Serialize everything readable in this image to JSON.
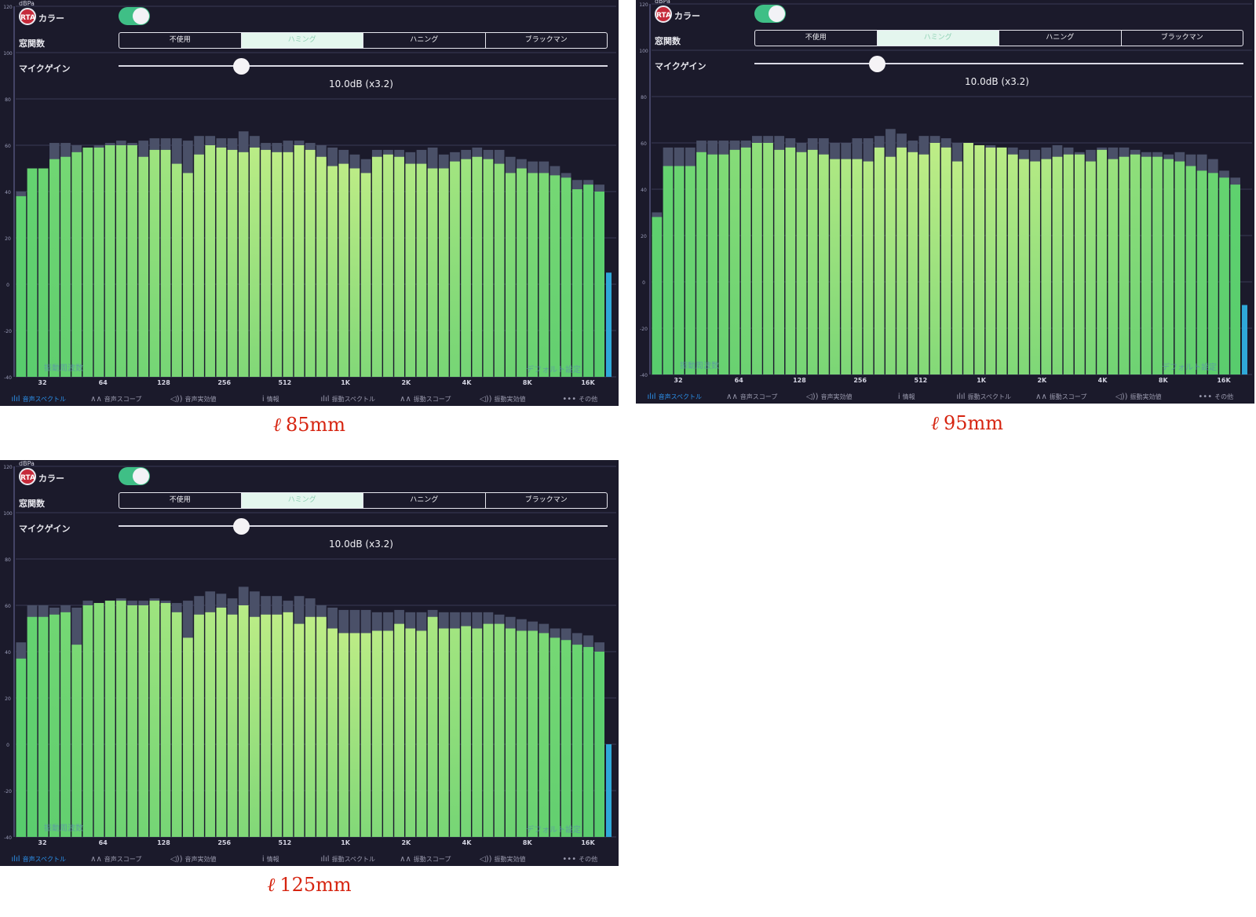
{
  "common": {
    "unit_label": "dBPa",
    "rta_badge": "RTA",
    "rta_color_label": "カラー",
    "window_label": "窓関数",
    "window_options": [
      "不使用",
      "ハミング",
      "ハニング",
      "ブラックマン"
    ],
    "window_selected_index": 1,
    "mic_gain_label": "マイクゲイン",
    "mic_gain_value": "10.0dB (x3.2)",
    "mic_gain_level": 0.25,
    "rta_color_on": true,
    "overlay_left": "振動周波数",
    "overlay_right": "デフォルト設定",
    "tabs": [
      {
        "icon": "spectrum-icon",
        "glyph": "ılıl",
        "label": "音声スペクトル",
        "active": true
      },
      {
        "icon": "wave-icon",
        "glyph": "∧∧",
        "label": "音声スコープ",
        "active": false
      },
      {
        "icon": "speaker-icon",
        "glyph": "◁))",
        "label": "音声実効値",
        "active": false
      },
      {
        "icon": "info-icon",
        "glyph": "i",
        "label": "情報",
        "active": false
      },
      {
        "icon": "vibration-spectrum-icon",
        "glyph": "ılıl",
        "label": "振動スペクトル",
        "active": false
      },
      {
        "icon": "vibration-wave-icon",
        "glyph": "∧∧",
        "label": "振動スコープ",
        "active": false
      },
      {
        "icon": "vibration-speaker-icon",
        "glyph": "◁))",
        "label": "振動実効値",
        "active": false
      },
      {
        "icon": "more-icon",
        "glyph": "•••",
        "label": "その他",
        "active": false
      }
    ],
    "colors": {
      "bar_top": "#8ae68a",
      "bar_low": "#52c86c",
      "panel_bg": "#1b1a2b",
      "peak": "#4a5068",
      "accent": "#2b8fe8"
    }
  },
  "chart_data": [
    {
      "type": "bar",
      "caption": "ℓ 85mm",
      "caption_prefix": "ℓ",
      "caption_value": "85mm",
      "ylabel": "dBPa",
      "ylim": [
        -40,
        120
      ],
      "y_ticks": [
        120,
        100,
        80,
        60,
        40,
        20,
        0,
        -20,
        -40
      ],
      "x_tick_labels": [
        "32",
        "64",
        "128",
        "256",
        "512",
        "1K",
        "2K",
        "4K",
        "8K",
        "16K"
      ],
      "values": [
        38,
        50,
        50,
        54,
        55,
        57,
        59,
        59,
        60,
        60,
        60,
        55,
        58,
        58,
        52,
        48,
        56,
        60,
        59,
        58,
        57,
        59,
        58,
        57,
        57,
        60,
        58,
        55,
        51,
        52,
        50,
        48,
        55,
        56,
        55,
        52,
        52,
        50,
        50,
        53,
        54,
        55,
        54,
        52,
        48,
        50,
        48,
        48,
        47,
        46,
        41,
        43,
        40
      ],
      "peaks": [
        40,
        50,
        50,
        61,
        61,
        60,
        59,
        60,
        61,
        62,
        61,
        62,
        63,
        63,
        63,
        62,
        64,
        64,
        63,
        63,
        66,
        64,
        61,
        61,
        62,
        62,
        61,
        60,
        59,
        58,
        56,
        54,
        58,
        58,
        58,
        57,
        58,
        59,
        56,
        57,
        58,
        59,
        58,
        58,
        55,
        54,
        53,
        53,
        51,
        48,
        45,
        45,
        43
      ],
      "last_value": 5
    },
    {
      "type": "bar",
      "caption": "ℓ 95mm",
      "caption_prefix": "ℓ",
      "caption_value": "95mm",
      "ylabel": "dBPa",
      "ylim": [
        -40,
        120
      ],
      "y_ticks": [
        120,
        100,
        80,
        60,
        40,
        20,
        0,
        -20,
        -40
      ],
      "x_tick_labels": [
        "32",
        "64",
        "128",
        "256",
        "512",
        "1K",
        "2K",
        "4K",
        "8K",
        "16K"
      ],
      "values": [
        28,
        50,
        50,
        50,
        56,
        55,
        55,
        57,
        58,
        60,
        60,
        57,
        58,
        56,
        57,
        55,
        53,
        53,
        53,
        52,
        58,
        54,
        58,
        56,
        55,
        60,
        58,
        52,
        60,
        59,
        58,
        58,
        55,
        53,
        52,
        53,
        54,
        55,
        55,
        52,
        57,
        53,
        54,
        55,
        54,
        54,
        53,
        52,
        50,
        48,
        47,
        45,
        42
      ],
      "peaks": [
        30,
        58,
        58,
        58,
        61,
        61,
        61,
        61,
        61,
        63,
        63,
        63,
        62,
        60,
        62,
        62,
        60,
        60,
        62,
        62,
        63,
        66,
        64,
        61,
        63,
        63,
        62,
        60,
        60,
        58,
        59,
        58,
        58,
        57,
        57,
        58,
        59,
        58,
        56,
        57,
        58,
        58,
        58,
        57,
        56,
        56,
        55,
        56,
        55,
        55,
        53,
        48,
        45
      ],
      "last_value": -10
    },
    {
      "type": "bar",
      "caption": "ℓ 125mm",
      "caption_prefix": "ℓ",
      "caption_value": "125mm",
      "ylabel": "dBPa",
      "ylim": [
        -40,
        120
      ],
      "y_ticks": [
        120,
        100,
        80,
        60,
        40,
        20,
        0,
        -20,
        -40
      ],
      "x_tick_labels": [
        "32",
        "64",
        "128",
        "256",
        "512",
        "1K",
        "2K",
        "4K",
        "8K",
        "16K"
      ],
      "values": [
        37,
        55,
        55,
        56,
        57,
        43,
        60,
        61,
        62,
        62,
        60,
        60,
        62,
        61,
        57,
        46,
        56,
        57,
        59,
        56,
        60,
        55,
        56,
        56,
        57,
        52,
        55,
        55,
        50,
        48,
        48,
        48,
        49,
        49,
        52,
        50,
        49,
        55,
        50,
        50,
        51,
        50,
        52,
        52,
        50,
        49,
        49,
        48,
        46,
        45,
        43,
        42,
        40
      ],
      "peaks": [
        44,
        60,
        60,
        59,
        60,
        59,
        62,
        61,
        62,
        63,
        62,
        62,
        63,
        62,
        61,
        62,
        64,
        66,
        65,
        63,
        68,
        66,
        64,
        64,
        62,
        64,
        63,
        60,
        59,
        58,
        58,
        58,
        57,
        57,
        58,
        57,
        57,
        58,
        57,
        57,
        57,
        57,
        57,
        56,
        55,
        54,
        53,
        52,
        50,
        50,
        48,
        47,
        44
      ],
      "last_value": 0
    }
  ]
}
